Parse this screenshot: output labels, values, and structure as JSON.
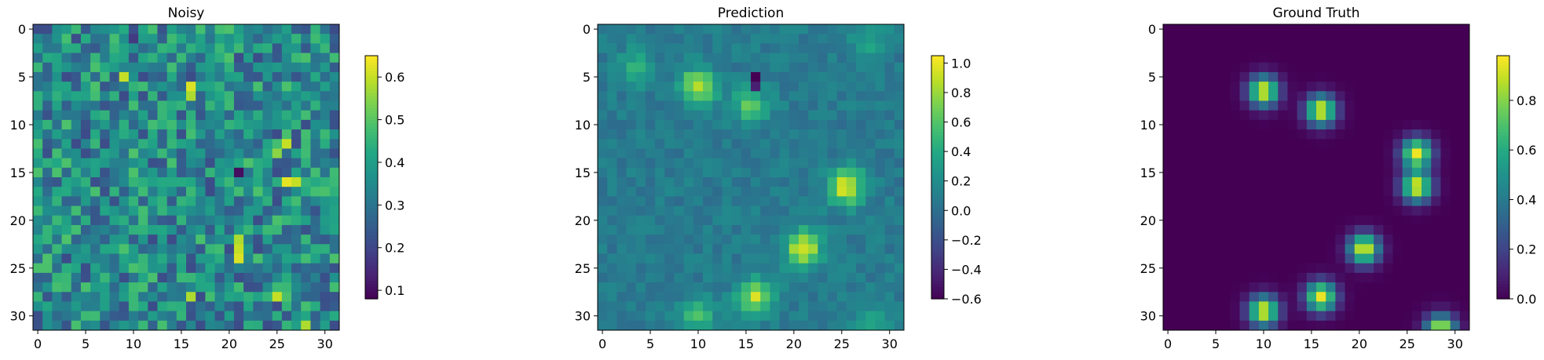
{
  "chart_data": [
    {
      "type": "heatmap",
      "title": "Noisy",
      "grid": false,
      "size": [
        32,
        32
      ],
      "x_ticks": [
        "0",
        "5",
        "10",
        "15",
        "20",
        "25",
        "30"
      ],
      "y_ticks": [
        "0",
        "5",
        "10",
        "15",
        "20",
        "25",
        "30"
      ],
      "xlim": [
        -0.5,
        31.5
      ],
      "ylim": [
        31.5,
        -0.5
      ],
      "colorbar": {
        "colormap": "viridis",
        "range": [
          0.08,
          0.65
        ],
        "ticks": [
          0.1,
          0.2,
          0.3,
          0.4,
          0.5,
          0.6
        ],
        "tick_labels": [
          "0.1",
          "0.2",
          "0.3",
          "0.4",
          "0.5",
          "0.6"
        ]
      },
      "background_level": 0.35,
      "noise_amplitude": 0.14,
      "highlights": [
        {
          "row": 5,
          "col": 9,
          "value": 0.6
        },
        {
          "row": 6,
          "col": 16,
          "value": 0.62
        },
        {
          "row": 7,
          "col": 16,
          "value": 0.58
        },
        {
          "row": 12,
          "col": 26,
          "value": 0.6
        },
        {
          "row": 13,
          "col": 25,
          "value": 0.55
        },
        {
          "row": 16,
          "col": 26,
          "value": 0.63
        },
        {
          "row": 16,
          "col": 27,
          "value": 0.6
        },
        {
          "row": 22,
          "col": 21,
          "value": 0.58
        },
        {
          "row": 23,
          "col": 21,
          "value": 0.6
        },
        {
          "row": 24,
          "col": 21,
          "value": 0.62
        },
        {
          "row": 28,
          "col": 16,
          "value": 0.58
        },
        {
          "row": 28,
          "col": 25,
          "value": 0.6
        },
        {
          "row": 31,
          "col": 28,
          "value": 0.58
        },
        {
          "row": 15,
          "col": 21,
          "value": 0.1
        },
        {
          "row": 1,
          "col": 10,
          "value": 0.18
        }
      ]
    },
    {
      "type": "heatmap",
      "title": "Prediction",
      "grid": false,
      "size": [
        32,
        32
      ],
      "x_ticks": [
        "0",
        "5",
        "10",
        "15",
        "20",
        "25",
        "30"
      ],
      "y_ticks": [
        "0",
        "5",
        "10",
        "15",
        "20",
        "25",
        "30"
      ],
      "xlim": [
        -0.5,
        31.5
      ],
      "ylim": [
        31.5,
        -0.5
      ],
      "colorbar": {
        "colormap": "viridis",
        "range": [
          -0.6,
          1.05
        ],
        "ticks": [
          -0.6,
          -0.4,
          -0.2,
          0.0,
          0.2,
          0.4,
          0.6,
          0.8,
          1.0
        ],
        "tick_labels": [
          "−0.6",
          "−0.4",
          "−0.2",
          "0.0",
          "0.2",
          "0.4",
          "0.6",
          "0.8",
          "1.0"
        ]
      },
      "background_level": 0.08,
      "noise_amplitude": 0.1,
      "blobs": [
        {
          "row": 6,
          "col": 10,
          "amplitude": 0.8
        },
        {
          "row": 8,
          "col": 15.5,
          "amplitude": 0.55
        },
        {
          "row": 16.5,
          "col": 25.5,
          "amplitude": 0.9
        },
        {
          "row": 23,
          "col": 21,
          "amplitude": 0.9
        },
        {
          "row": 28,
          "col": 16,
          "amplitude": 0.8
        },
        {
          "row": 30,
          "col": 10,
          "amplitude": 0.45
        },
        {
          "row": 4,
          "col": 3.5,
          "amplitude": 0.35
        },
        {
          "row": 1,
          "col": 28,
          "amplitude": 0.3
        },
        {
          "row": 31,
          "col": 28,
          "amplitude": 0.3
        }
      ],
      "dips": [
        {
          "row": 5,
          "col": 15.5,
          "value": -0.6
        },
        {
          "row": 6,
          "col": 16,
          "value": -0.45
        }
      ]
    },
    {
      "type": "heatmap",
      "title": "Ground Truth",
      "grid": false,
      "size": [
        32,
        32
      ],
      "x_ticks": [
        "0",
        "5",
        "10",
        "15",
        "20",
        "25",
        "30"
      ],
      "y_ticks": [
        "0",
        "5",
        "10",
        "15",
        "20",
        "25",
        "30"
      ],
      "xlim": [
        -0.5,
        31.5
      ],
      "ylim": [
        31.5,
        -0.5
      ],
      "colorbar": {
        "colormap": "viridis",
        "range": [
          0.0,
          0.98
        ],
        "ticks": [
          0.0,
          0.2,
          0.4,
          0.6,
          0.8
        ],
        "tick_labels": [
          "0.0",
          "0.2",
          "0.4",
          "0.6",
          "0.8"
        ]
      },
      "background_level": 0.0,
      "blob_sigma": 1.1,
      "blobs": [
        {
          "row": 6.5,
          "col": 10,
          "amplitude": 0.95
        },
        {
          "row": 8.5,
          "col": 16,
          "amplitude": 0.95
        },
        {
          "row": 13,
          "col": 26,
          "amplitude": 0.95
        },
        {
          "row": 16.5,
          "col": 26,
          "amplitude": 0.95
        },
        {
          "row": 23,
          "col": 20.5,
          "amplitude": 0.95
        },
        {
          "row": 28,
          "col": 16,
          "amplitude": 0.95
        },
        {
          "row": 29.5,
          "col": 10,
          "amplitude": 0.95
        },
        {
          "row": 31.5,
          "col": 28.5,
          "amplitude": 0.95
        }
      ]
    }
  ]
}
